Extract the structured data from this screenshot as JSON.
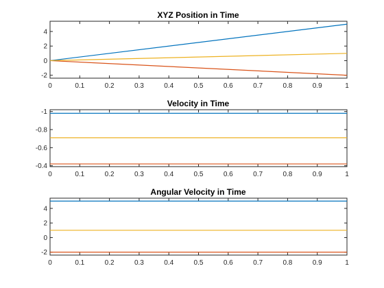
{
  "chart_data": [
    {
      "type": "line",
      "title": "XYZ Position in Time",
      "xlabel": "",
      "ylabel": "",
      "xlim": [
        0,
        1
      ],
      "ylim": [
        -2.4,
        5.4
      ],
      "xticks": [
        0,
        0.1,
        0.2,
        0.3,
        0.4,
        0.5,
        0.6,
        0.7,
        0.8,
        0.9,
        1
      ],
      "xtick_labels": [
        "0",
        "0.1",
        "0.2",
        "0.3",
        "0.4",
        "0.5",
        "0.6",
        "0.7",
        "0.8",
        "0.9",
        "1"
      ],
      "yticks": [
        -2,
        0,
        2,
        4
      ],
      "ytick_labels": [
        "-2",
        "0",
        "2",
        "4"
      ],
      "grid": false,
      "series": [
        {
          "color": "#0072BD",
          "x": [
            0,
            1
          ],
          "values": [
            0,
            5
          ]
        },
        {
          "color": "#D95319",
          "x": [
            0,
            1
          ],
          "values": [
            0,
            -2
          ]
        },
        {
          "color": "#EDB120",
          "x": [
            0,
            1
          ],
          "values": [
            0,
            1
          ]
        }
      ]
    },
    {
      "type": "line",
      "title": "Velocity in Time",
      "xlabel": "",
      "ylabel": "",
      "xlim": [
        0,
        1
      ],
      "ylim": [
        -1.02,
        -0.39
      ],
      "yaxis_reversed": true,
      "xticks": [
        0,
        0.1,
        0.2,
        0.3,
        0.4,
        0.5,
        0.6,
        0.7,
        0.8,
        0.9,
        1
      ],
      "xtick_labels": [
        "0",
        "0.1",
        "0.2",
        "0.3",
        "0.4",
        "0.5",
        "0.6",
        "0.7",
        "0.8",
        "0.9",
        "1"
      ],
      "yticks": [
        -0.4,
        -0.6,
        -0.8,
        -1
      ],
      "ytick_labels": [
        "-0.4",
        "-0.6",
        "-0.8",
        "-1"
      ],
      "grid": false,
      "series": [
        {
          "color": "#0072BD",
          "x": [
            0,
            1
          ],
          "values": [
            -0.98,
            -0.98
          ]
        },
        {
          "color": "#D95319",
          "x": [
            0,
            1
          ],
          "values": [
            -0.42,
            -0.42
          ]
        },
        {
          "color": "#EDB120",
          "x": [
            0,
            1
          ],
          "values": [
            -0.71,
            -0.71
          ]
        }
      ]
    },
    {
      "type": "line",
      "title": "Angular Velocity in Time",
      "xlabel": "",
      "ylabel": "",
      "xlim": [
        0,
        1
      ],
      "ylim": [
        -2.4,
        5.4
      ],
      "xticks": [
        0,
        0.1,
        0.2,
        0.3,
        0.4,
        0.5,
        0.6,
        0.7,
        0.8,
        0.9,
        1
      ],
      "xtick_labels": [
        "0",
        "0.1",
        "0.2",
        "0.3",
        "0.4",
        "0.5",
        "0.6",
        "0.7",
        "0.8",
        "0.9",
        "1"
      ],
      "yticks": [
        -2,
        0,
        2,
        4
      ],
      "ytick_labels": [
        "-2",
        "0",
        "2",
        "4"
      ],
      "grid": false,
      "series": [
        {
          "color": "#0072BD",
          "x": [
            0,
            1
          ],
          "values": [
            5,
            5
          ]
        },
        {
          "color": "#D95319",
          "x": [
            0,
            1
          ],
          "values": [
            -2,
            -2
          ]
        },
        {
          "color": "#EDB120",
          "x": [
            0,
            1
          ],
          "values": [
            1,
            1
          ]
        }
      ]
    }
  ]
}
